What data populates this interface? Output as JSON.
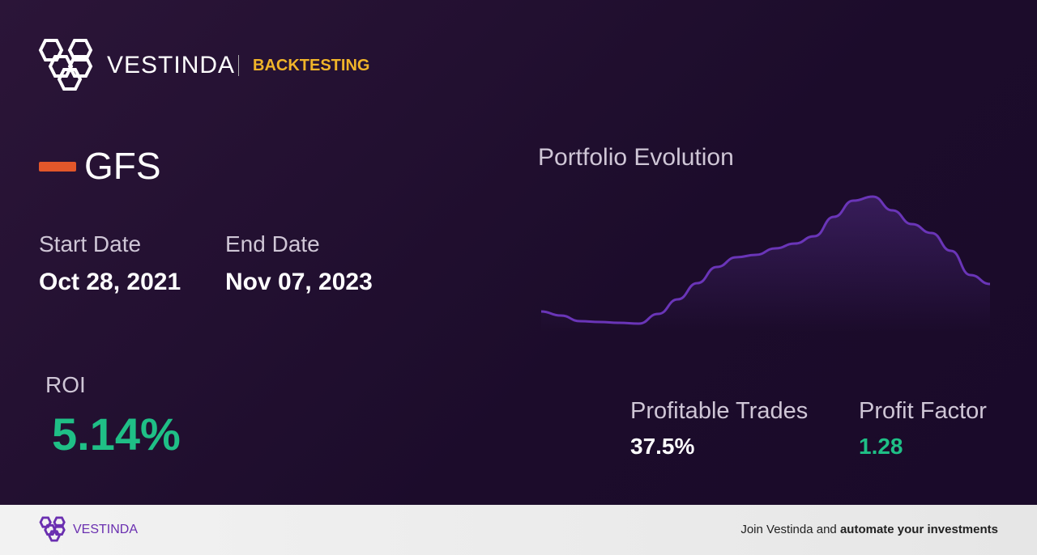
{
  "header": {
    "brand": "VESTINDA",
    "section": "BACKTESTING"
  },
  "ticker": "GFS",
  "dates": {
    "start_label": "Start Date",
    "start": "Oct 28, 2021",
    "end_label": "End Date",
    "end": "Nov 07, 2023"
  },
  "roi": {
    "label": "ROI",
    "value": "5.14%"
  },
  "portfolio": {
    "title": "Portfolio Evolution",
    "values": [
      15,
      10,
      3,
      2,
      1,
      0,
      12,
      30,
      50,
      70,
      82,
      85,
      93,
      99,
      108,
      132,
      152,
      157,
      140,
      123,
      112,
      90,
      60,
      49
    ]
  },
  "stats": {
    "profitable_trades_label": "Profitable Trades",
    "profitable_trades": "37.5%",
    "profit_factor_label": "Profit Factor",
    "profit_factor": "1.28"
  },
  "footer": {
    "brand": "VESTINDA",
    "cta_text": "Join Vestinda and",
    "cta_bold": "automate your investments"
  }
}
